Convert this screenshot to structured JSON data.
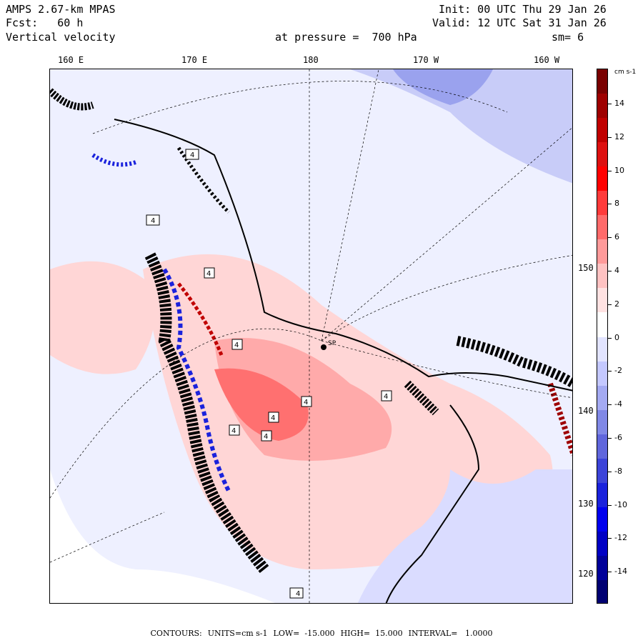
{
  "header": {
    "model": "AMPS 2.67-km MPAS",
    "forecast": "Fcst:   60 h",
    "field": "Vertical velocity",
    "init": "Init: 00 UTC Thu 29 Jan 26",
    "valid": "Valid: 12 UTC Sat 31 Jan 26",
    "pressure": "at pressure =  700 hPa",
    "smoothing": "sm= 6"
  },
  "longitude_labels": [
    "160 E",
    "170 E",
    "180",
    "170 W",
    "160 W"
  ],
  "latitude_labels": [
    "150 W",
    "140 W",
    "130 W",
    "120 W"
  ],
  "colorbar": {
    "units": "cm s-1",
    "tick_labels": [
      "14",
      "12",
      "10",
      "8",
      "6",
      "4",
      "2",
      "0",
      "-2",
      "-4",
      "-6",
      "-8",
      "-10",
      "-12",
      "-14"
    ],
    "colors": [
      "#7a0000",
      "#9e0000",
      "#c00000",
      "#dd1010",
      "#ff0000",
      "#ff3a3a",
      "#ff6a6a",
      "#ff9a9a",
      "#ffc2c2",
      "#ffe2e2",
      "#ffffff",
      "#e2e4ff",
      "#c4c8ff",
      "#a4aaf2",
      "#8088e6",
      "#6066dc",
      "#3c44d8",
      "#1a22dc",
      "#0000ee",
      "#0000c4",
      "#000099",
      "#000072"
    ]
  },
  "footer": {
    "contours_label": "CONTOURS:",
    "units": "UNITS=cm s-1",
    "low": "LOW=  -15.000",
    "high": "HIGH=  15.000",
    "interval": "INTERVAL=   1.0000"
  },
  "map_labels": {
    "box_labels": [
      "4",
      "4",
      "4",
      "4",
      "4",
      "4",
      "4",
      "4",
      "4",
      "4"
    ],
    "station_label": "SP"
  }
}
